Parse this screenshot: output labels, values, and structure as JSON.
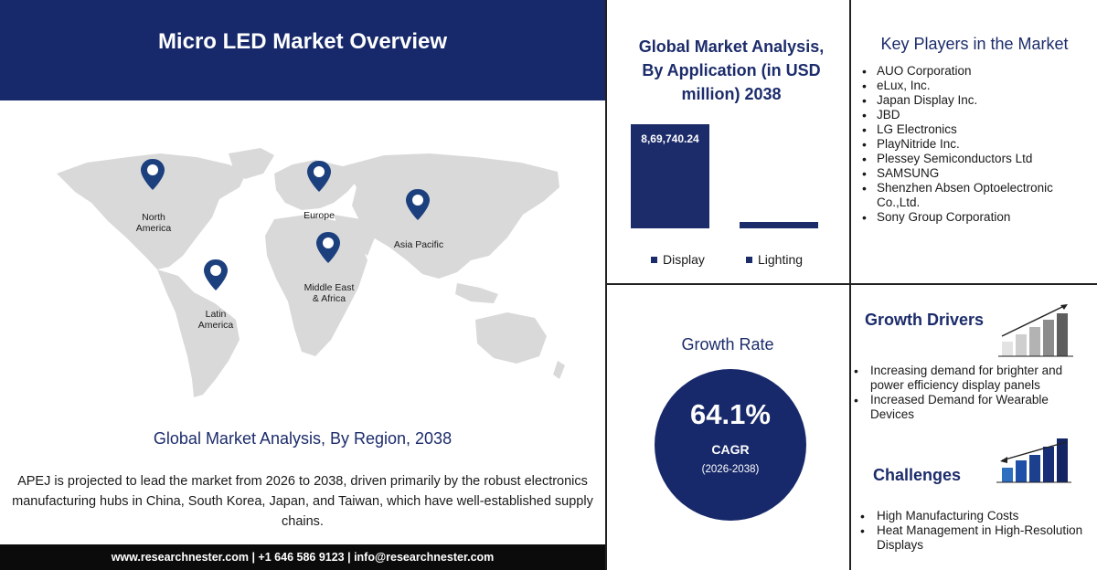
{
  "overview": {
    "title": "Micro LED Market Overview",
    "region_title": "Global Market Analysis, By Region, 2038",
    "region_description": "APEJ is projected to lead the market from 2026 to 2038, driven primarily by the robust electronics manufacturing hubs in China, South Korea, Japan, and Taiwan, which have well-established supply chains.",
    "regions": [
      {
        "name": "North America",
        "lines": [
          "North",
          "America"
        ]
      },
      {
        "name": "Europe",
        "lines": [
          "Europe"
        ]
      },
      {
        "name": "Asia Pacific",
        "lines": [
          "Asia Pacific"
        ]
      },
      {
        "name": "Middle East & Africa",
        "lines": [
          "Middle East",
          "& Africa"
        ]
      },
      {
        "name": "Latin America",
        "lines": [
          "Latin",
          "America"
        ]
      }
    ],
    "footer": "www.researchnester.com | +1 646 586 9123 | info@researchnester.com"
  },
  "application": {
    "title_line1": "Global Market Analysis,",
    "title_line2": "By Application (in USD",
    "title_line3": "million) 2038"
  },
  "chart_data": {
    "type": "bar",
    "categories": [
      "Display",
      "Lighting"
    ],
    "values": [
      869740.24,
      30000
    ],
    "data_labels": [
      "8,69,740.24",
      ""
    ],
    "title": "Global Market Analysis, By Application (in USD million) 2038",
    "legend": [
      "Display",
      "Lighting"
    ],
    "legend_placement": "bottom",
    "color": "#1c2c6b"
  },
  "key_players": {
    "title": "Key Players in the Market",
    "items": [
      "AUO Corporation",
      "eLux, Inc.",
      "Japan Display Inc.",
      "JBD",
      "LG Electronics",
      "PlayNitride Inc.",
      "Plessey Semiconductors Ltd",
      "SAMSUNG",
      "Shenzhen Absen Optoelectronic Co.,Ltd.",
      "Sony Group Corporation"
    ]
  },
  "growth": {
    "title": "Growth Rate",
    "value": "64.1%",
    "label": "CAGR",
    "period": "(2026-2038)"
  },
  "drivers": {
    "title": "Growth Drivers",
    "items": [
      "Increasing demand for brighter and power efficiency display panels",
      "Increased Demand for Wearable Devices"
    ]
  },
  "challenges": {
    "title": "Challenges",
    "items": [
      "High Manufacturing Costs",
      "Heat Management in High-Resolution Displays"
    ]
  },
  "colors": {
    "navy": "#17296a",
    "map": "#d9d9d9",
    "pin": "#1c3f7e"
  }
}
